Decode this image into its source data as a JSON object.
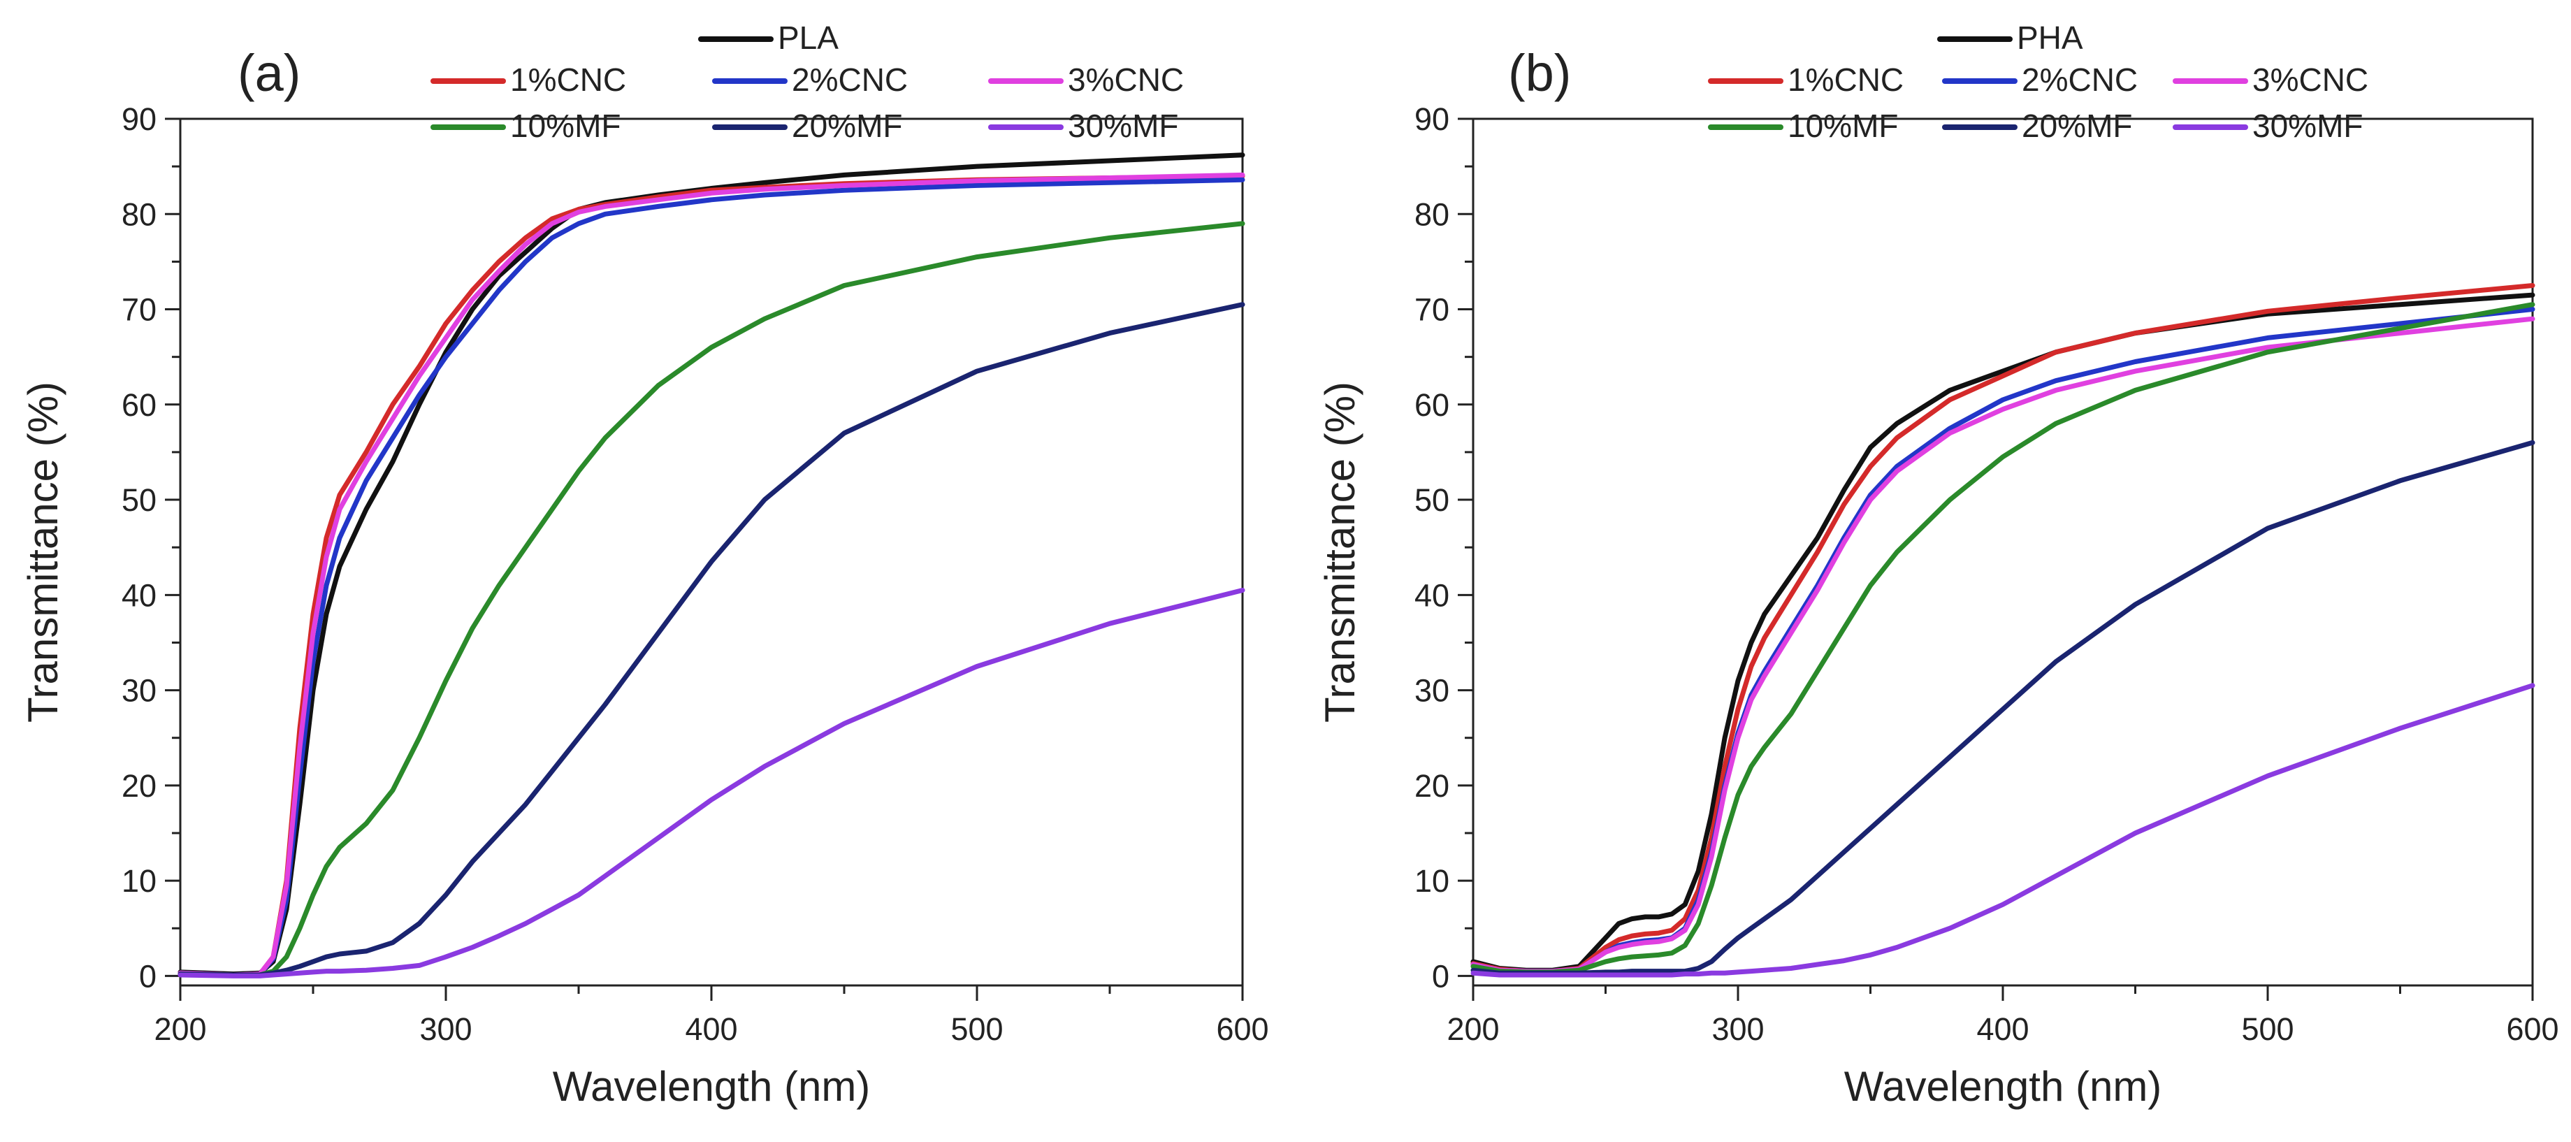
{
  "chart_data": [
    {
      "type": "line",
      "panel_label": "(a)",
      "title": "",
      "xlabel": "Wavelength (nm)",
      "ylabel": "Transmittance (%)",
      "xlim": [
        200,
        600
      ],
      "ylim": [
        -1,
        90
      ],
      "xticks": [
        200,
        300,
        400,
        500,
        600
      ],
      "yticks": [
        0,
        10,
        20,
        30,
        40,
        50,
        60,
        70,
        80,
        90
      ],
      "grid": false,
      "legend": "top",
      "x": [
        200,
        220,
        230,
        235,
        240,
        245,
        250,
        255,
        260,
        270,
        280,
        290,
        300,
        310,
        320,
        330,
        340,
        350,
        360,
        380,
        400,
        420,
        450,
        500,
        550,
        600
      ],
      "series": [
        {
          "name": "PLA",
          "color": "#111111",
          "values": [
            0.4,
            0.2,
            0.3,
            1.5,
            7,
            18,
            30,
            38,
            43,
            49,
            54,
            60,
            65.5,
            70,
            73.5,
            76,
            78.5,
            80.5,
            81.2,
            82,
            82.7,
            83.3,
            84.1,
            85,
            85.6,
            86.2
          ]
        },
        {
          "name": "1%CNC",
          "color": "#d42a2a",
          "values": [
            0.3,
            0.1,
            0.2,
            2,
            10,
            26,
            38,
            46,
            50.5,
            55,
            60,
            64,
            68.5,
            72,
            75,
            77.5,
            79.5,
            80.5,
            81,
            81.8,
            82.5,
            82.8,
            83.2,
            83.6,
            83.8,
            84
          ]
        },
        {
          "name": "2%CNC",
          "color": "#2236c8",
          "values": [
            0.3,
            0.1,
            0.2,
            1.8,
            8,
            21,
            33,
            41,
            46,
            52,
            56.5,
            61,
            65,
            68.5,
            72,
            75,
            77.5,
            79,
            80,
            80.8,
            81.5,
            82,
            82.5,
            83,
            83.3,
            83.6
          ]
        },
        {
          "name": "3%CNC",
          "color": "#e040e0",
          "values": [
            0.3,
            0.1,
            0.2,
            2,
            9.5,
            24,
            36,
            44,
            49,
            54,
            58.5,
            63,
            67,
            71,
            74,
            76.8,
            79,
            80.2,
            80.8,
            81.5,
            82.2,
            82.6,
            83,
            83.5,
            83.8,
            84.1
          ]
        },
        {
          "name": "10%MF",
          "color": "#2a8a2a",
          "values": [
            0.2,
            0.1,
            0.1,
            0.5,
            2,
            5,
            8.5,
            11.5,
            13.5,
            16,
            19.5,
            25,
            31,
            36.5,
            41,
            45,
            49,
            53,
            56.5,
            62,
            66,
            69,
            72.5,
            75.5,
            77.5,
            79
          ]
        },
        {
          "name": "20%MF",
          "color": "#1a2470",
          "values": [
            0.2,
            0.1,
            0.1,
            0.3,
            0.6,
            1,
            1.5,
            2,
            2.3,
            2.6,
            3.5,
            5.5,
            8.5,
            12,
            15,
            18,
            21.5,
            25,
            28.5,
            36,
            43.5,
            50,
            57,
            63.5,
            67.5,
            70.5
          ]
        },
        {
          "name": "30%MF",
          "color": "#8a3ae0",
          "values": [
            0.1,
            0,
            0,
            0.1,
            0.2,
            0.3,
            0.4,
            0.5,
            0.5,
            0.6,
            0.8,
            1.1,
            2,
            3,
            4.2,
            5.5,
            7,
            8.5,
            10.5,
            14.5,
            18.5,
            22,
            26.5,
            32.5,
            37,
            40.5
          ]
        }
      ]
    },
    {
      "type": "line",
      "panel_label": "(b)",
      "title": "",
      "xlabel": "Wavelength (nm)",
      "ylabel": "Transmittance (%)",
      "xlim": [
        200,
        600
      ],
      "ylim": [
        -1,
        90
      ],
      "xticks": [
        200,
        300,
        400,
        500,
        600
      ],
      "yticks": [
        0,
        10,
        20,
        30,
        40,
        50,
        60,
        70,
        80,
        90
      ],
      "grid": false,
      "legend": "top",
      "x": [
        200,
        210,
        220,
        230,
        240,
        250,
        255,
        260,
        265,
        270,
        275,
        280,
        285,
        290,
        295,
        300,
        305,
        310,
        320,
        330,
        340,
        350,
        360,
        380,
        400,
        420,
        450,
        500,
        550,
        600
      ],
      "series": [
        {
          "name": "PHA",
          "color": "#111111",
          "values": [
            1.5,
            0.8,
            0.6,
            0.6,
            1,
            4,
            5.5,
            6,
            6.2,
            6.2,
            6.5,
            7.5,
            11,
            17,
            25,
            31,
            35,
            38,
            42,
            46,
            51,
            55.5,
            58,
            61.5,
            63.5,
            65.5,
            67.5,
            69.5,
            70.5,
            71.5
          ]
        },
        {
          "name": "1%CNC",
          "color": "#d42a2a",
          "values": [
            1.3,
            0.7,
            0.5,
            0.5,
            0.8,
            3,
            3.8,
            4.2,
            4.4,
            4.5,
            4.8,
            6,
            9,
            14.5,
            22,
            28,
            32.5,
            35.5,
            40,
            44.5,
            49.5,
            53.5,
            56.5,
            60.5,
            63,
            65.5,
            67.5,
            69.8,
            71.2,
            72.5
          ]
        },
        {
          "name": "2%CNC",
          "color": "#2236c8",
          "values": [
            1.2,
            0.6,
            0.5,
            0.5,
            0.7,
            2.5,
            3.2,
            3.5,
            3.7,
            3.8,
            4,
            5,
            8,
            13,
            20,
            25.5,
            29.5,
            32,
            36.5,
            41,
            46,
            50.5,
            53.5,
            57.5,
            60.5,
            62.5,
            64.5,
            67,
            68.5,
            70
          ]
        },
        {
          "name": "3%CNC",
          "color": "#e040e0",
          "values": [
            1.2,
            0.6,
            0.5,
            0.5,
            0.7,
            2.5,
            3,
            3.3,
            3.5,
            3.6,
            3.9,
            4.8,
            7.5,
            12.5,
            19.5,
            25,
            29,
            31.5,
            36,
            40.5,
            45.5,
            50,
            53,
            57,
            59.5,
            61.5,
            63.5,
            66,
            67.5,
            69
          ]
        },
        {
          "name": "10%MF",
          "color": "#2a8a2a",
          "values": [
            1,
            0.5,
            0.4,
            0.4,
            0.6,
            1.5,
            1.8,
            2,
            2.1,
            2.2,
            2.4,
            3.2,
            5.5,
            9.5,
            14.5,
            19,
            22,
            24,
            27.5,
            32,
            36.5,
            41,
            44.5,
            50,
            54.5,
            58,
            61.5,
            65.5,
            68,
            70.5
          ]
        },
        {
          "name": "20%MF",
          "color": "#1a2470",
          "values": [
            0.6,
            0.3,
            0.3,
            0.3,
            0.3,
            0.4,
            0.4,
            0.5,
            0.5,
            0.5,
            0.5,
            0.5,
            0.8,
            1.5,
            2.8,
            4,
            5,
            6,
            8,
            10.5,
            13,
            15.5,
            18,
            23,
            28,
            33,
            39,
            47,
            52,
            56
          ]
        },
        {
          "name": "30%MF",
          "color": "#8a3ae0",
          "values": [
            0.3,
            0.1,
            0.1,
            0.1,
            0.1,
            0.1,
            0.1,
            0.1,
            0.1,
            0.1,
            0.1,
            0.2,
            0.2,
            0.3,
            0.3,
            0.4,
            0.5,
            0.6,
            0.8,
            1.2,
            1.6,
            2.2,
            3,
            5,
            7.5,
            10.5,
            15,
            21,
            26,
            30.5
          ]
        }
      ]
    }
  ]
}
